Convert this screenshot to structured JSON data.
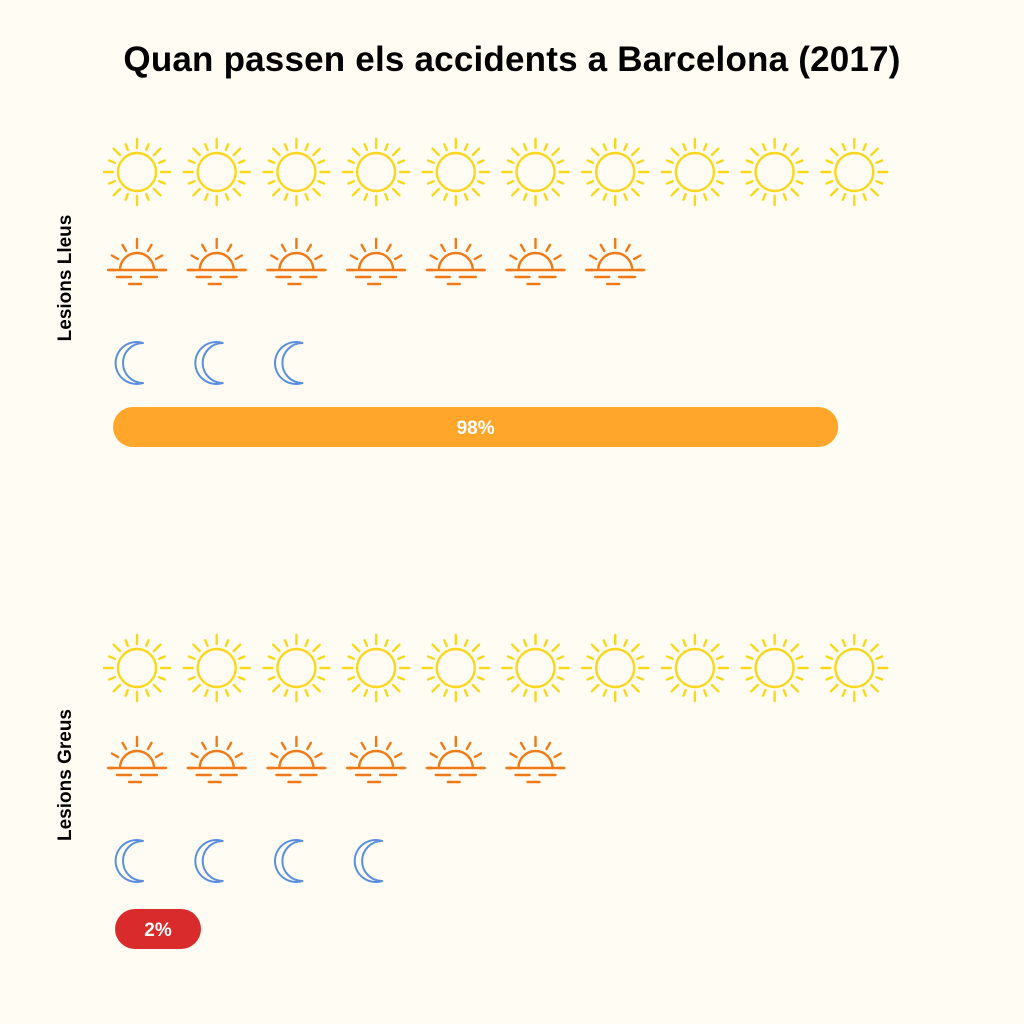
{
  "title": "Quan passen els accidents a Barcelona (2017)",
  "chart_data": {
    "type": "pictogram",
    "title": "Quan passen els accidents a Barcelona (2017)",
    "icon_rows": [
      {
        "icon": "sun-icon",
        "color": "#f8d81c"
      },
      {
        "icon": "sunset-icon",
        "color": "#f07a1a"
      },
      {
        "icon": "moon-icon",
        "color": "#5b8fdd"
      }
    ],
    "groups": [
      {
        "label": "Lesions Lleus",
        "counts": [
          10,
          7,
          3
        ],
        "share_label": "98%",
        "share": 98,
        "bar_color": "#ffa62b"
      },
      {
        "label": "Lesions Greus",
        "counts": [
          10,
          6,
          4
        ],
        "share_label": "2%",
        "share": 2,
        "bar_color": "#d92b2b"
      }
    ]
  }
}
